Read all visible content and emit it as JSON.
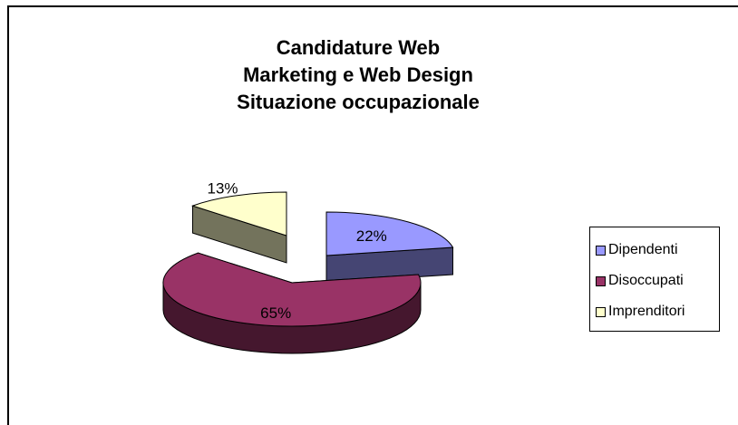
{
  "chart_data": {
    "type": "pie",
    "title": [
      "Candidature Web",
      "Marketing e Web Design",
      "Situazione occupazionale"
    ],
    "categories": [
      "Dipendenti",
      "Disoccupati",
      "Imprenditori"
    ],
    "values": [
      22,
      65,
      13
    ],
    "labels": [
      "22%",
      "65%",
      "13%"
    ],
    "colors": [
      "#9999ff",
      "#993366",
      "#ffffcc"
    ],
    "exploded": true,
    "three_d": true,
    "legend_position": "right"
  }
}
